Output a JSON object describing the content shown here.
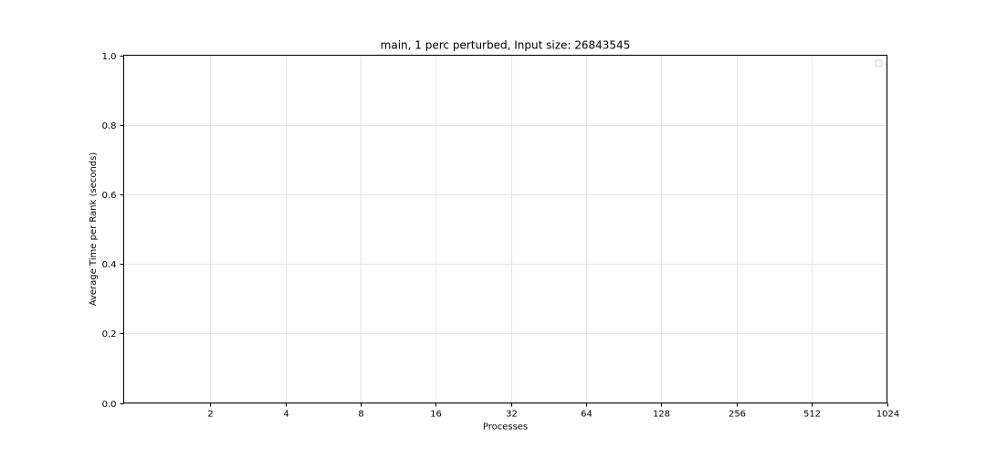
{
  "chart_data": {
    "type": "line",
    "title": "main, 1 perc perturbed, Input size: 26843545",
    "xlabel": "Processes",
    "ylabel": "Average Time per Rank (seconds)",
    "x_scale": "log2",
    "x_ticks": [
      2,
      4,
      8,
      16,
      32,
      64,
      128,
      256,
      512,
      1024
    ],
    "x_tick_labels": [
      "2",
      "4",
      "8",
      "16",
      "32",
      "64",
      "128",
      "256",
      "512",
      "1024"
    ],
    "xlim": [
      0.9,
      1024
    ],
    "ylim": [
      0.0,
      1.0
    ],
    "y_ticks": [
      0.0,
      0.2,
      0.4,
      0.6,
      0.8,
      1.0
    ],
    "y_tick_labels": [
      "0.0",
      "0.2",
      "0.4",
      "0.6",
      "0.8",
      "1.0"
    ],
    "grid": true,
    "legend": {
      "position": "top-right",
      "entries": []
    },
    "series": []
  }
}
